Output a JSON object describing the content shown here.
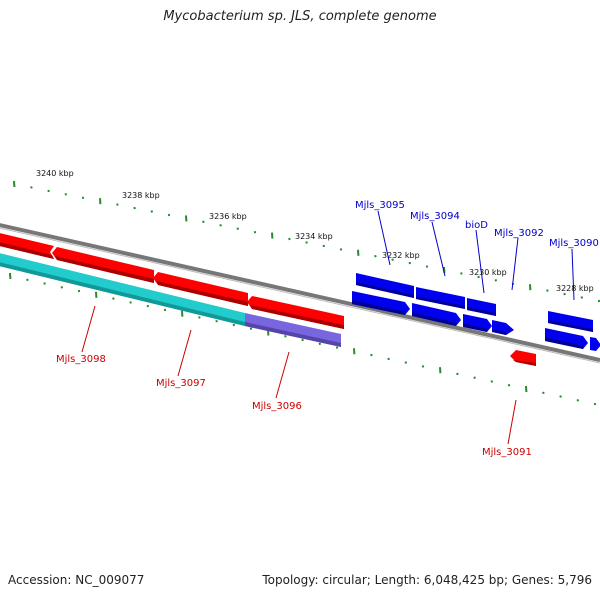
{
  "title": "Mycobacterium sp. JLS, complete genome",
  "footer": {
    "accession": "Accession: NC_009077",
    "info": "Topology: circular; Length: 6,048,425 bp; Genes: 5,796"
  },
  "scale_labels": [
    "3240 kbp",
    "3238 kbp",
    "3236 kbp",
    "3234 kbp",
    "3232 kbp",
    "3230 kbp",
    "3228 kbp"
  ],
  "gene_labels": {
    "mjls_3098": "Mjls_3098",
    "mjls_3097": "Mjls_3097",
    "mjls_3096": "Mjls_3096",
    "mjls_3095": "Mjls_3095",
    "mjls_3094": "Mjls_3094",
    "biod": "bioD",
    "mjls_3092": "Mjls_3092",
    "mjls_3091": "Mjls_3091",
    "mjls_3090": "Mjls_3090"
  },
  "colors": {
    "cds_red": "#ff0000",
    "cds_blue": "#0000ee",
    "rna_cyan": "#22cccc",
    "purple": "#7766dd",
    "backbone": "#888888",
    "tick_green": "#2a8a2a"
  }
}
